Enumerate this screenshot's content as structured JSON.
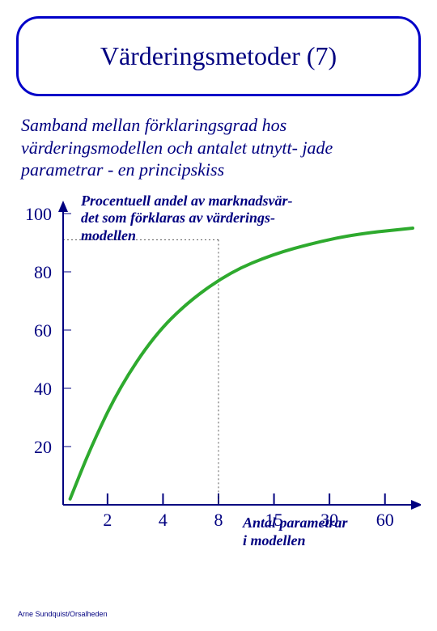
{
  "title": "Värderingsmetoder (7)",
  "subtitle": "Samband mellan förklaringsgrad hos värderingsmodellen och antalet utnytt- jade parametrar - en principskiss",
  "chart": {
    "type": "line",
    "y_axis_label": "Procentuell andel av marknadsvär-\ndet som förklaras av värderings-\nmodellen",
    "x_axis_label": "Antal parametrar\ni modellen",
    "y_ticks": [
      100,
      80,
      60,
      40,
      20
    ],
    "x_ticks": [
      "2",
      "4",
      "8",
      "15",
      "30",
      "60"
    ],
    "curve_color": "#2eaa2e",
    "curve_width": 4,
    "axis_color": "#000080",
    "arrow_color": "#000080",
    "text_color": "#000080",
    "background_color": "#ffffff",
    "dotted_color": "#555555",
    "dotted_ref_x_index": 2,
    "dotted_y_value": 91,
    "curve_points": [
      {
        "x": 0.02,
        "y": 2
      },
      {
        "x": 0.08,
        "y": 20
      },
      {
        "x": 0.16,
        "y": 40
      },
      {
        "x": 0.26,
        "y": 58
      },
      {
        "x": 0.36,
        "y": 70
      },
      {
        "x": 0.48,
        "y": 80
      },
      {
        "x": 0.6,
        "y": 86
      },
      {
        "x": 0.72,
        "y": 90
      },
      {
        "x": 0.84,
        "y": 93
      },
      {
        "x": 1.0,
        "y": 95
      }
    ]
  },
  "footer": "Arne Sundquist/Orsalheden"
}
